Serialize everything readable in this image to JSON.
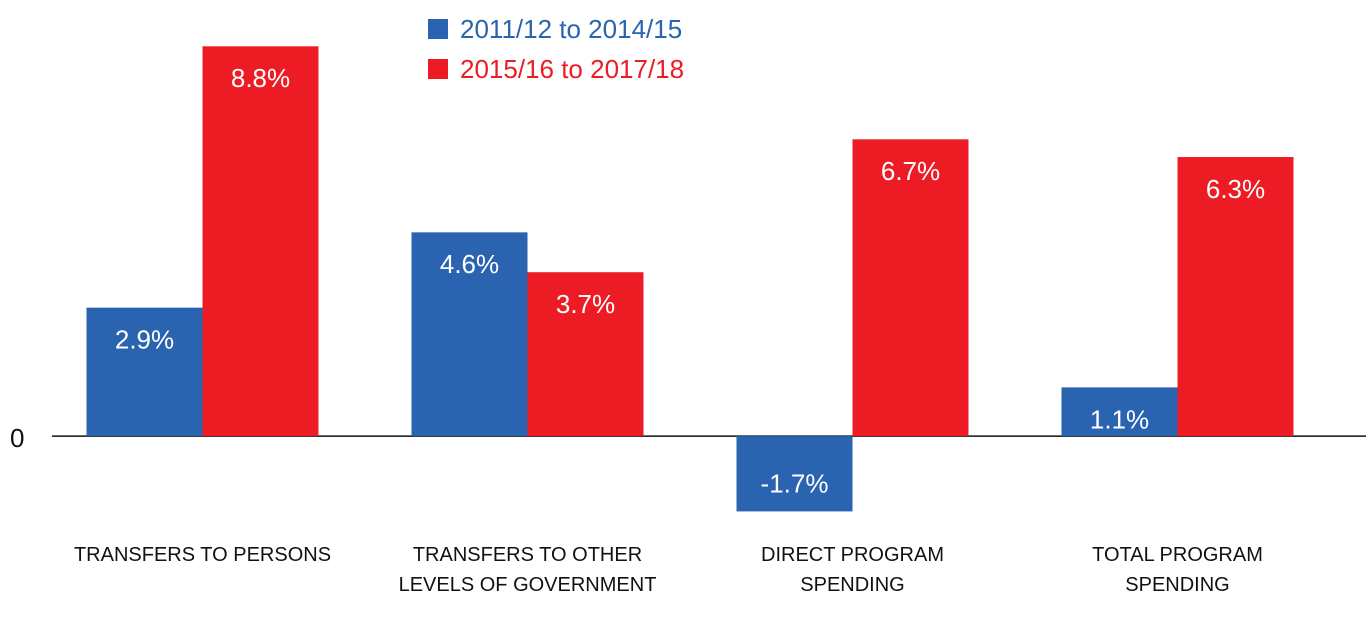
{
  "chart_data": {
    "type": "bar",
    "categories": [
      "TRANSFERS TO PERSONS",
      "TRANSFERS TO OTHER LEVELS OF GOVERNMENT",
      "DIRECT PROGRAM SPENDING",
      "TOTAL PROGRAM SPENDING"
    ],
    "series": [
      {
        "name": "2011/12 to 2014/15",
        "color": "#2a63b0",
        "values": [
          2.9,
          4.6,
          -1.7,
          1.1
        ],
        "value_labels": [
          "2.9%",
          "4.6%",
          "-1.7%",
          "1.1%"
        ]
      },
      {
        "name": "2015/16 to 2017/18",
        "color": "#ed1c24",
        "values": [
          8.8,
          3.7,
          6.7,
          6.3
        ],
        "value_labels": [
          "8.8%",
          "3.7%",
          "6.7%",
          "6.3%"
        ]
      }
    ],
    "ylim": [
      -3,
      9.8
    ],
    "yticks": [
      0
    ],
    "grid": false,
    "legend": "top"
  }
}
